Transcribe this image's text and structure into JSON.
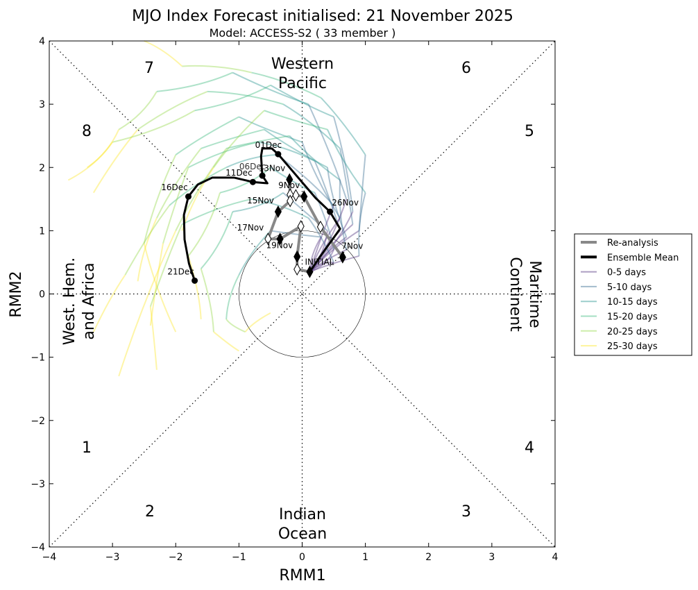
{
  "chart_data": {
    "type": "line",
    "title": "MJO Index Forecast initialised:  21  November 2025",
    "subtitle": "Model: ACCESS-S2 ( 33 member )",
    "xlabel": "RMM1",
    "ylabel": "RMM2",
    "xlim": [
      -4,
      4
    ],
    "ylim": [
      -4,
      4
    ],
    "xticks": [
      "−4",
      "−3",
      "−2",
      "−1",
      "0",
      "1",
      "2",
      "3",
      "4"
    ],
    "yticks": [
      "−4",
      "−3",
      "−2",
      "−1",
      "0",
      "1",
      "2",
      "3",
      "4"
    ],
    "phase_numbers": [
      "1",
      "2",
      "3",
      "4",
      "5",
      "6",
      "7",
      "8"
    ],
    "regions": {
      "top": [
        "Western",
        "Pacific"
      ],
      "bottom": [
        "Indian",
        "Ocean"
      ],
      "left": [
        "West. Hem.",
        "and Africa"
      ],
      "right": [
        "Maritime",
        "Continent"
      ]
    },
    "legend": {
      "placement": "right",
      "entries": [
        {
          "label": "Re-analysis",
          "color": "#888888"
        },
        {
          "label": "Ensemble Mean",
          "color": "#000000"
        },
        {
          "label": "0-5 days",
          "color": "#482878"
        },
        {
          "label": "5-10 days",
          "color": "#31688e"
        },
        {
          "label": "10-15 days",
          "color": "#21918c"
        },
        {
          "label": "15-20 days",
          "color": "#35b779"
        },
        {
          "label": "20-25 days",
          "color": "#90d743"
        },
        {
          "label": "25-30 days",
          "color": "#fde725"
        }
      ]
    },
    "reanalysis": {
      "points": [
        {
          "x": 0.64,
          "y": 0.58,
          "filled": true,
          "label": "7Nov"
        },
        {
          "x": 0.29,
          "y": 1.06,
          "filled": false
        },
        {
          "x": 0.03,
          "y": 1.54,
          "filled": true,
          "label": "9Nov"
        },
        {
          "x": -0.1,
          "y": 1.56,
          "filled": false
        },
        {
          "x": -0.19,
          "y": 1.57,
          "filled": false
        },
        {
          "x": -0.2,
          "y": 1.81,
          "filled": true,
          "label": "13Nov"
        },
        {
          "x": -0.19,
          "y": 1.47,
          "filled": false
        },
        {
          "x": -0.38,
          "y": 1.3,
          "filled": true,
          "label": "15Nov"
        },
        {
          "x": -0.54,
          "y": 0.87,
          "filled": false,
          "label": "17Nov"
        },
        {
          "x": -0.35,
          "y": 0.87,
          "filled": true
        },
        {
          "x": -0.02,
          "y": 1.07,
          "filled": false
        },
        {
          "x": -0.08,
          "y": 0.59,
          "filled": true,
          "label": "19Nov"
        },
        {
          "x": -0.08,
          "y": 0.39,
          "filled": false
        },
        {
          "x": 0.12,
          "y": 0.35,
          "filled": true,
          "label": "INITIAL"
        }
      ]
    },
    "ensemble_mean": {
      "points": [
        {
          "x": 0.12,
          "y": 0.35
        },
        {
          "x": 0.27,
          "y": 0.57
        },
        {
          "x": 0.6,
          "y": 1.03
        },
        {
          "x": 0.44,
          "y": 1.3,
          "dot": true,
          "label": "26Nov"
        },
        {
          "x": 0.21,
          "y": 1.52
        },
        {
          "x": -0.38,
          "y": 2.21,
          "dot": true,
          "label": "01Dec"
        },
        {
          "x": -0.48,
          "y": 2.3
        },
        {
          "x": -0.63,
          "y": 2.3
        },
        {
          "x": -0.65,
          "y": 2.18
        },
        {
          "x": -0.63,
          "y": 1.87,
          "dot": true,
          "label": "06Dec"
        },
        {
          "x": -0.55,
          "y": 1.75
        },
        {
          "x": -0.78,
          "y": 1.77,
          "dot": true,
          "label": "11Dec"
        },
        {
          "x": -1.08,
          "y": 1.84
        },
        {
          "x": -1.42,
          "y": 1.84
        },
        {
          "x": -1.65,
          "y": 1.73
        },
        {
          "x": -1.8,
          "y": 1.54,
          "dot": true,
          "label": "16Dec"
        },
        {
          "x": -1.87,
          "y": 1.25
        },
        {
          "x": -1.86,
          "y": 0.86
        },
        {
          "x": -1.79,
          "y": 0.48
        },
        {
          "x": -1.7,
          "y": 0.21,
          "dot": true,
          "label": "21Dec"
        }
      ]
    },
    "members_note_5day_nodes": true,
    "members": [
      [
        [
          0.12,
          0.35
        ],
        [
          0.7,
          0.9
        ],
        [
          0.4,
          2.0
        ],
        [
          -0.6,
          2.6
        ],
        [
          -1.6,
          2.3
        ],
        [
          -2.3,
          1.2
        ],
        [
          -2.6,
          0.2
        ]
      ],
      [
        [
          0.12,
          0.35
        ],
        [
          0.8,
          1.1
        ],
        [
          0.6,
          2.3
        ],
        [
          -0.3,
          3.0
        ],
        [
          -1.5,
          3.2
        ],
        [
          -2.6,
          2.6
        ],
        [
          -3.3,
          1.6
        ]
      ],
      [
        [
          0.12,
          0.35
        ],
        [
          0.5,
          0.7
        ],
        [
          0.2,
          1.6
        ],
        [
          -0.5,
          2.0
        ],
        [
          -1.3,
          1.6
        ],
        [
          -1.8,
          0.6
        ],
        [
          -1.6,
          -0.4
        ]
      ],
      [
        [
          0.12,
          0.35
        ],
        [
          0.6,
          1.2
        ],
        [
          0.0,
          2.4
        ],
        [
          -1.0,
          2.8
        ],
        [
          -2.0,
          2.2
        ],
        [
          -2.5,
          0.8
        ],
        [
          -2.0,
          -0.6
        ]
      ],
      [
        [
          0.12,
          0.35
        ],
        [
          0.9,
          1.0
        ],
        [
          1.0,
          2.2
        ],
        [
          0.3,
          3.1
        ],
        [
          -0.8,
          3.5
        ],
        [
          -1.9,
          3.6
        ],
        [
          -2.5,
          4.0
        ]
      ],
      [
        [
          0.12,
          0.35
        ],
        [
          0.4,
          1.0
        ],
        [
          -0.3,
          1.6
        ],
        [
          -1.1,
          1.3
        ],
        [
          -1.6,
          0.4
        ],
        [
          -1.4,
          -0.6
        ],
        [
          -1.0,
          -0.9
        ]
      ],
      [
        [
          0.12,
          0.35
        ],
        [
          0.7,
          0.7
        ],
        [
          0.6,
          1.8
        ],
        [
          -0.2,
          2.5
        ],
        [
          -1.2,
          2.3
        ],
        [
          -2.0,
          1.0
        ],
        [
          -2.9,
          -1.3
        ]
      ],
      [
        [
          0.12,
          0.35
        ],
        [
          0.5,
          1.4
        ],
        [
          -0.4,
          2.2
        ],
        [
          -1.2,
          2.0
        ],
        [
          -2.1,
          1.4
        ],
        [
          -2.8,
          0.3
        ],
        [
          -3.3,
          -0.6
        ]
      ],
      [
        [
          0.12,
          0.35
        ],
        [
          0.8,
          1.3
        ],
        [
          0.5,
          2.8
        ],
        [
          -0.5,
          3.3
        ],
        [
          -1.7,
          2.9
        ],
        [
          -3.0,
          2.4
        ],
        [
          -3.7,
          1.8
        ]
      ],
      [
        [
          0.12,
          0.35
        ],
        [
          0.3,
          0.9
        ],
        [
          -0.5,
          1.0
        ],
        [
          -1.0,
          0.3
        ],
        [
          -1.2,
          -0.4
        ],
        [
          -0.9,
          -0.6
        ],
        [
          -0.5,
          -0.3
        ]
      ],
      [
        [
          0.12,
          0.35
        ],
        [
          0.6,
          1.0
        ],
        [
          0.2,
          2.1
        ],
        [
          -0.7,
          2.4
        ],
        [
          -1.8,
          2.0
        ],
        [
          -2.2,
          0.8
        ],
        [
          -2.4,
          -0.5
        ]
      ],
      [
        [
          0.12,
          0.35
        ],
        [
          0.7,
          1.5
        ],
        [
          0.1,
          3.0
        ],
        [
          -1.1,
          3.5
        ],
        [
          -2.3,
          3.2
        ],
        [
          -2.9,
          2.6
        ],
        [
          -3.4,
          2.0
        ]
      ],
      [
        [
          0.12,
          0.35
        ],
        [
          0.9,
          0.6
        ],
        [
          1.0,
          1.6
        ],
        [
          0.4,
          2.6
        ],
        [
          -0.6,
          2.9
        ],
        [
          -1.4,
          2.0
        ],
        [
          -1.9,
          1.0
        ]
      ],
      [
        [
          0.12,
          0.35
        ],
        [
          0.5,
          0.5
        ],
        [
          0.1,
          1.2
        ],
        [
          -0.8,
          1.5
        ],
        [
          -1.9,
          1.1
        ],
        [
          -2.4,
          -0.2
        ],
        [
          -2.3,
          -1.2
        ]
      ]
    ]
  }
}
